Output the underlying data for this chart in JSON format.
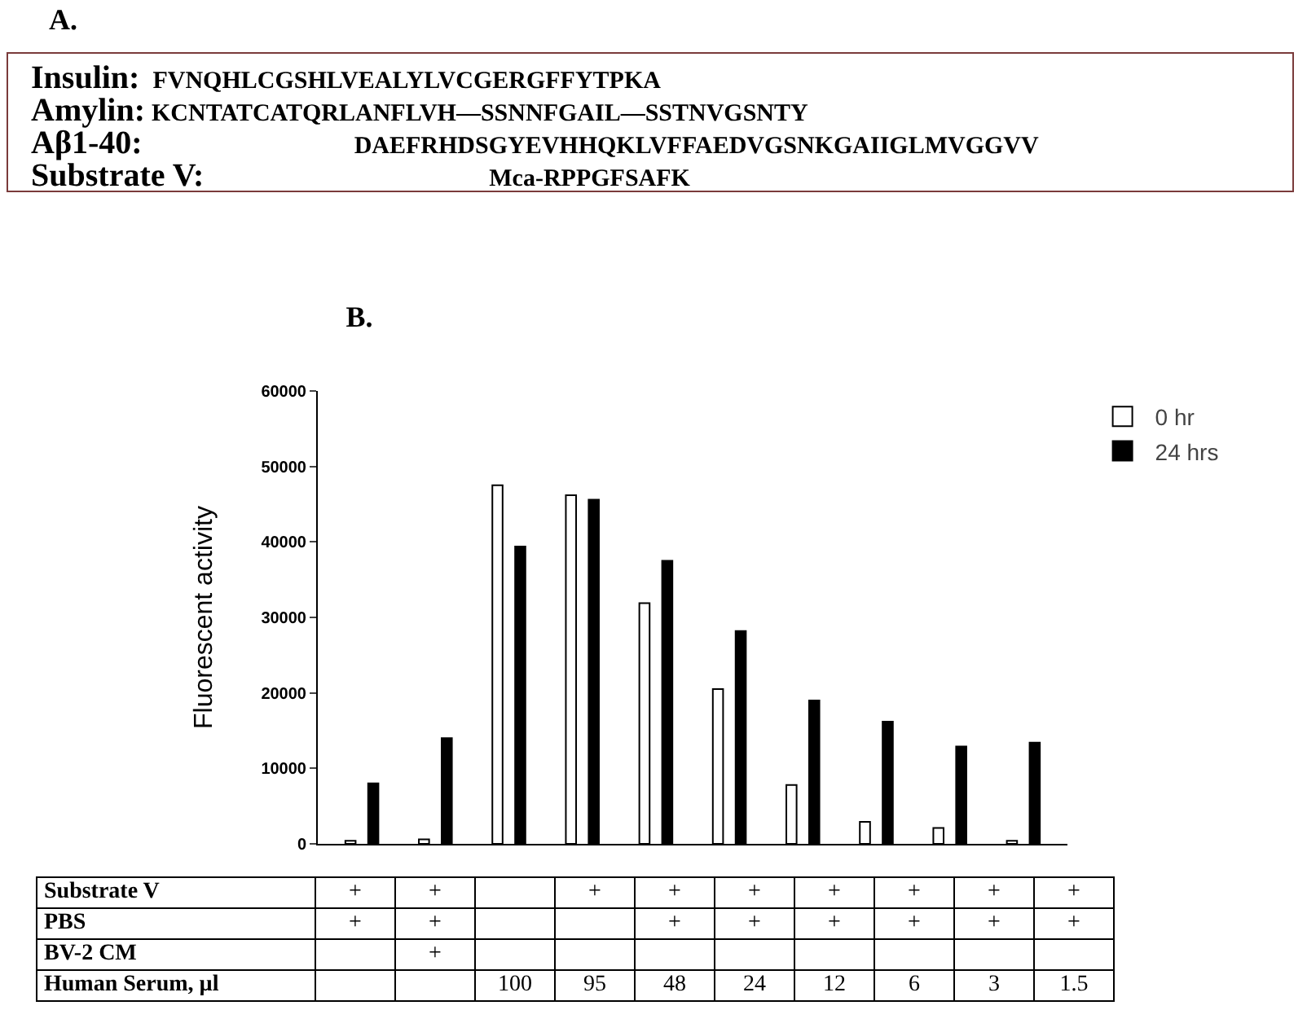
{
  "chart_data": [
    {
      "type": "other",
      "title": "A.",
      "annotations": [
        "Insulin:",
        "FVNQHLCGSHLVEALYLVCGERGFFYTPKA",
        "Amylin:",
        "KCNTATCATQRLANFLVH—SSNNFGAIL—SSTNVGSNTY",
        "Aβ1-40:",
        "DAEFRHDSGYEVHHQKLVFFAEDVGSNKGAIIGLMVGGVV",
        "Substrate V:",
        "Mca-RPPGFSAFK"
      ]
    },
    {
      "type": "bar",
      "title": "B.",
      "ylabel": "Fluorescent activity",
      "categories": [
        null,
        null,
        null,
        null,
        null,
        null,
        null,
        null,
        null,
        null
      ],
      "series": [
        {
          "name": "0 hr",
          "color": "#ffffff",
          "values": [
            400,
            600,
            47500,
            46200,
            31900,
            20500,
            7800,
            2900,
            2100,
            400
          ]
        },
        {
          "name": "24 hrs",
          "color": "#000000",
          "values": [
            8000,
            14000,
            39400,
            45600,
            37500,
            28200,
            19000,
            16200,
            12900,
            13400
          ]
        }
      ],
      "ylim": [
        0,
        60000
      ],
      "yticks": [
        0,
        10000,
        20000,
        30000,
        40000,
        50000,
        60000
      ],
      "grid": false,
      "legend": "top right",
      "tick_labels": "y"
    },
    {
      "type": "other",
      "y_categories": [
        "Substrate V",
        "PBS",
        "BV-2 CM",
        "Human Serum, µl"
      ],
      "cell_labels": [
        [
          "+",
          "+",
          null,
          "+",
          "+",
          "+",
          "+",
          "+",
          "+",
          "+"
        ],
        [
          "+",
          "+",
          null,
          null,
          "+",
          "+",
          "+",
          "+",
          "+",
          "+"
        ],
        [
          null,
          "+",
          null,
          null,
          null,
          null,
          null,
          null,
          null,
          null
        ],
        [
          null,
          null,
          "100",
          "95",
          "48",
          "24",
          "12",
          "6",
          "3",
          "1.5"
        ]
      ]
    }
  ]
}
